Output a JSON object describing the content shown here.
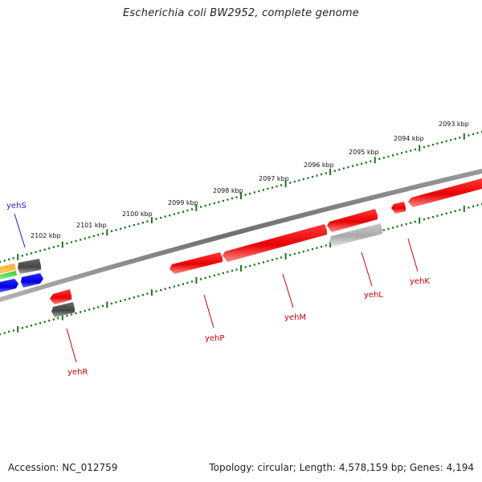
{
  "title": "Escherichia coli BW2952, complete genome",
  "footer": {
    "accession": "Accession: NC_012759",
    "summary": "Topology: circular; Length: 4,578,159 bp; Genes: 4,194"
  },
  "scale_labels": [
    "2093 kbp",
    "2094 kbp",
    "2095 kbp",
    "2096 kbp",
    "2097 kbp",
    "2098 kbp",
    "2099 kbp",
    "2100 kbp",
    "2101 kbp",
    "2102 kbp"
  ],
  "gene_labels": [
    {
      "name": "yehK",
      "color": "#cc0000"
    },
    {
      "name": "yehL",
      "color": "#cc0000"
    },
    {
      "name": "yehM",
      "color": "#cc0000"
    },
    {
      "name": "yehP",
      "color": "#cc0000"
    },
    {
      "name": "yehR",
      "color": "#cc0000"
    },
    {
      "name": "yehS",
      "color": "#1a1adb"
    }
  ],
  "colors": {
    "backbone": "#808080",
    "scale": "#1a7a1a",
    "gene_red": "#ff1a1a",
    "gene_dark": "#555555",
    "gene_light": "#bdbdbd",
    "gene_blue": "#1010ee",
    "gene_green": "#22bb22",
    "gene_orange": "#ff9900",
    "label_red": "#cc0000",
    "label_blue": "#1a1adb"
  }
}
